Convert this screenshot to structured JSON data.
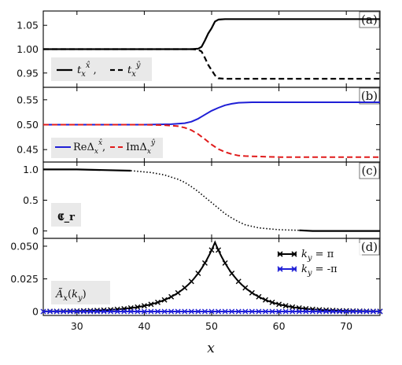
{
  "chart_data": [
    {
      "panel": "(a)",
      "type": "line",
      "xlim": [
        25,
        75
      ],
      "ylim": [
        0.92,
        1.08
      ],
      "yticks": [
        0.95,
        1.0,
        1.05
      ],
      "ytick_labels": [
        "0.95",
        "1.00",
        "1.05"
      ],
      "legend_placement": "bottom-left",
      "series": [
        {
          "name": "t_x^x̂",
          "style": "solid",
          "color": "#000000",
          "x": [
            25,
            30,
            35,
            40,
            45,
            47,
            48,
            48.5,
            49,
            49.5,
            50,
            50.5,
            51,
            52,
            55,
            60,
            65,
            70,
            75
          ],
          "y": [
            1.0,
            1.0,
            1.0,
            1.0,
            1.0,
            1.0,
            1.001,
            1.005,
            1.018,
            1.033,
            1.044,
            1.058,
            1.062,
            1.063,
            1.063,
            1.063,
            1.063,
            1.063,
            1.063
          ]
        },
        {
          "name": "t_x^ŷ",
          "style": "dashed",
          "color": "#000000",
          "x": [
            25,
            30,
            35,
            40,
            45,
            47,
            48,
            48.5,
            49,
            49.5,
            50,
            50.5,
            51,
            52,
            55,
            60,
            65,
            70,
            75
          ],
          "y": [
            1.0,
            1.0,
            1.0,
            1.0,
            1.0,
            1.0,
            0.999,
            0.995,
            0.982,
            0.967,
            0.956,
            0.945,
            0.939,
            0.938,
            0.938,
            0.938,
            0.938,
            0.938,
            0.938
          ]
        }
      ]
    },
    {
      "panel": "(b)",
      "type": "line",
      "xlim": [
        25,
        75
      ],
      "ylim": [
        0.425,
        0.575
      ],
      "yticks": [
        0.45,
        0.5,
        0.55
      ],
      "ytick_labels": [
        "0.45",
        "0.50",
        "0.55"
      ],
      "legend_placement": "bottom-left",
      "series": [
        {
          "name": "ReΔ_x^x̂",
          "style": "solid",
          "color": "#1f1fd6",
          "x": [
            25,
            30,
            35,
            40,
            44,
            46,
            47,
            48,
            49,
            50,
            51,
            52,
            53,
            54,
            56,
            58,
            60,
            65,
            70,
            75
          ],
          "y": [
            0.5,
            0.5,
            0.5,
            0.5,
            0.501,
            0.503,
            0.506,
            0.512,
            0.52,
            0.528,
            0.534,
            0.539,
            0.542,
            0.544,
            0.545,
            0.545,
            0.545,
            0.545,
            0.545,
            0.545
          ]
        },
        {
          "name": "ImΔ_x^ŷ",
          "style": "dashed",
          "color": "#e01b1b",
          "x": [
            25,
            30,
            35,
            40,
            43,
            45,
            46,
            47,
            48,
            49,
            50,
            51,
            52,
            53,
            54,
            55,
            57,
            60,
            65,
            70,
            75
          ],
          "y": [
            0.5,
            0.5,
            0.5,
            0.5,
            0.499,
            0.497,
            0.494,
            0.489,
            0.481,
            0.471,
            0.46,
            0.451,
            0.445,
            0.441,
            0.438,
            0.437,
            0.436,
            0.435,
            0.435,
            0.435,
            0.435
          ]
        }
      ]
    },
    {
      "panel": "(c)",
      "type": "line",
      "xlim": [
        25,
        75
      ],
      "ylim": [
        -0.12,
        1.12
      ],
      "yticks": [
        0,
        0.5,
        1.0
      ],
      "ytick_labels": [
        "0",
        "0.5",
        "1.0"
      ],
      "label": "𝕮_r",
      "series": [
        {
          "name": "",
          "style": "segments",
          "x": [
            25,
            30,
            34,
            38,
            41,
            43,
            45,
            46,
            47,
            48,
            49,
            50,
            51,
            52,
            53,
            54,
            55,
            57,
            60,
            63,
            65,
            70,
            75
          ],
          "y": [
            1.0,
            1.0,
            0.99,
            0.98,
            0.95,
            0.91,
            0.84,
            0.79,
            0.72,
            0.64,
            0.55,
            0.46,
            0.37,
            0.28,
            0.21,
            0.15,
            0.1,
            0.05,
            0.02,
            0.01,
            0.0,
            0.0,
            0.0
          ],
          "solid_ranges": [
            [
              25,
              38
            ],
            [
              63,
              75
            ]
          ],
          "dotted_range": [
            38,
            63
          ]
        }
      ]
    },
    {
      "panel": "(d)",
      "type": "line",
      "xlim": [
        25,
        75
      ],
      "ylim": [
        -0.003,
        0.056
      ],
      "yticks": [
        0,
        0.025,
        0.05
      ],
      "ytick_labels": [
        "0",
        "0.025",
        "0.050"
      ],
      "xticks": [
        30,
        40,
        50,
        60,
        70
      ],
      "xtick_labels": [
        "30",
        "40",
        "50",
        "60",
        "70"
      ],
      "xlabel": "x",
      "label": "Ã_x(k_y)",
      "legend_placement": "top-right",
      "series": [
        {
          "name": "k_y = π",
          "style": "solid-x",
          "color": "#000000",
          "peak_x": 50.5,
          "peak_y": 0.053,
          "decay_length": 4.2
        },
        {
          "name": "k_y = -π",
          "style": "solid-x",
          "color": "#1f1fd6",
          "constant_y": 0
        }
      ]
    }
  ]
}
